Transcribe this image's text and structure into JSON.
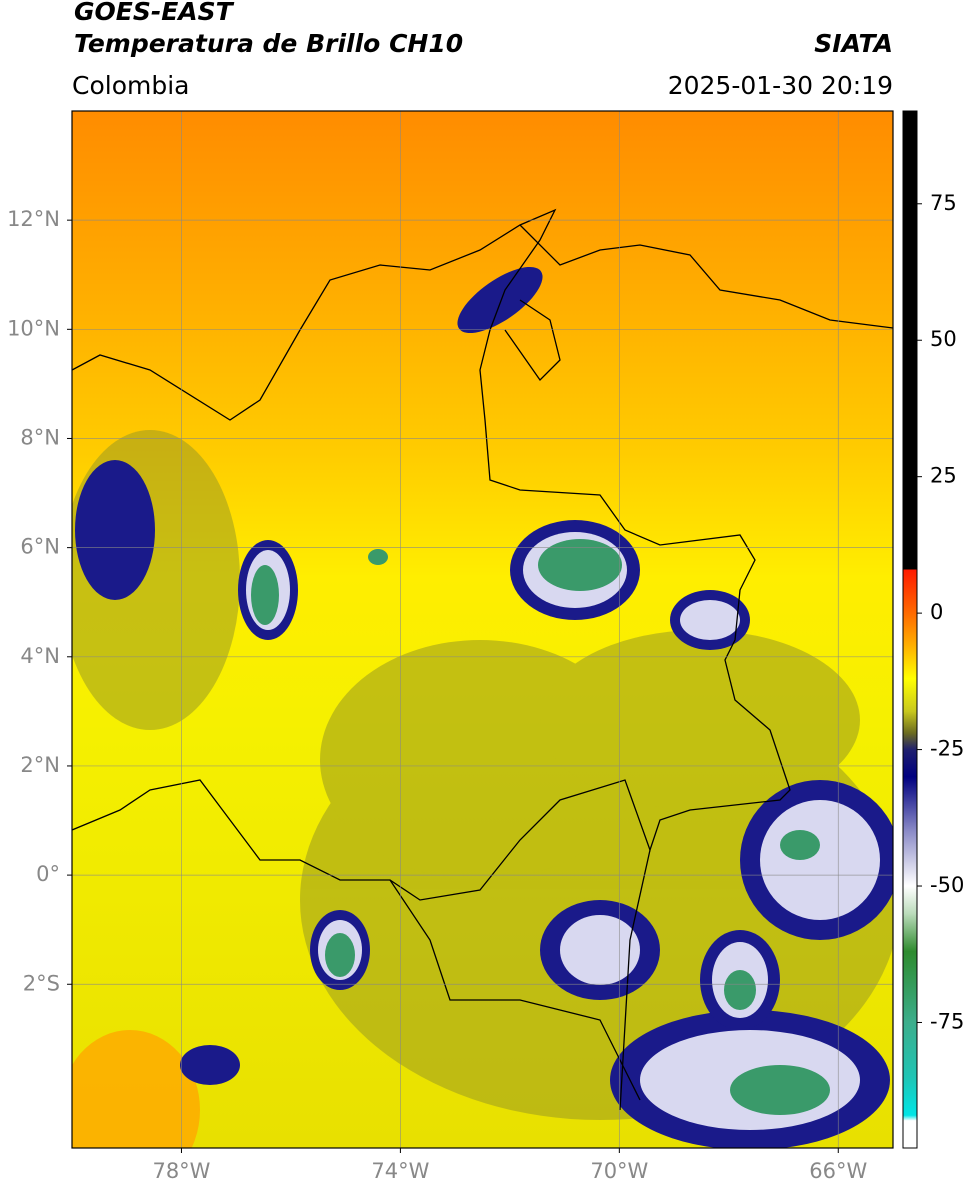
{
  "header": {
    "title": "GOES-EAST",
    "subtitle": "Temperatura de Brillo CH10",
    "source": "SIATA",
    "region": "Colombia",
    "datetime": "2025-01-30 20:19"
  },
  "map": {
    "xlim": [
      -80,
      -65
    ],
    "ylim": [
      -5,
      14
    ],
    "xticks": [
      {
        "value": -78,
        "label": "78°W"
      },
      {
        "value": -74,
        "label": "74°W"
      },
      {
        "value": -70,
        "label": "70°W"
      },
      {
        "value": -66,
        "label": "66°W"
      }
    ],
    "yticks": [
      {
        "value": 12,
        "label": "12°N"
      },
      {
        "value": 10,
        "label": "10°N"
      },
      {
        "value": 8,
        "label": "8°N"
      },
      {
        "value": 6,
        "label": "6°N"
      },
      {
        "value": 4,
        "label": "4°N"
      },
      {
        "value": 2,
        "label": "2°N"
      },
      {
        "value": 0,
        "label": "0°"
      },
      {
        "value": -2,
        "label": "2°S"
      }
    ],
    "grid": true
  },
  "colorbar": {
    "lim": [
      -98,
      92
    ],
    "ticks": [
      75,
      50,
      25,
      0,
      -25,
      -50,
      -75
    ],
    "stops": [
      {
        "value": 92,
        "color": "#000000"
      },
      {
        "value": 8,
        "color": "#000000"
      },
      {
        "value": 8,
        "color": "#ff1a00"
      },
      {
        "value": 0,
        "color": "#ff6a00"
      },
      {
        "value": -6,
        "color": "#ffb000"
      },
      {
        "value": -12,
        "color": "#ffff00"
      },
      {
        "value": -18,
        "color": "#c8c81e"
      },
      {
        "value": -22,
        "color": "#6b6b20"
      },
      {
        "value": -25,
        "color": "#20206e"
      },
      {
        "value": -30,
        "color": "#000080"
      },
      {
        "value": -40,
        "color": "#8c8cc8"
      },
      {
        "value": -50,
        "color": "#ffffff"
      },
      {
        "value": -55,
        "color": "#bcdcbc"
      },
      {
        "value": -62,
        "color": "#2e8b2e"
      },
      {
        "value": -75,
        "color": "#3cae8c"
      },
      {
        "value": -85,
        "color": "#20c4b4"
      },
      {
        "value": -92,
        "color": "#00e5e5"
      },
      {
        "value": -93,
        "color": "#ffffff"
      },
      {
        "value": -98,
        "color": "#ffffff"
      }
    ]
  }
}
